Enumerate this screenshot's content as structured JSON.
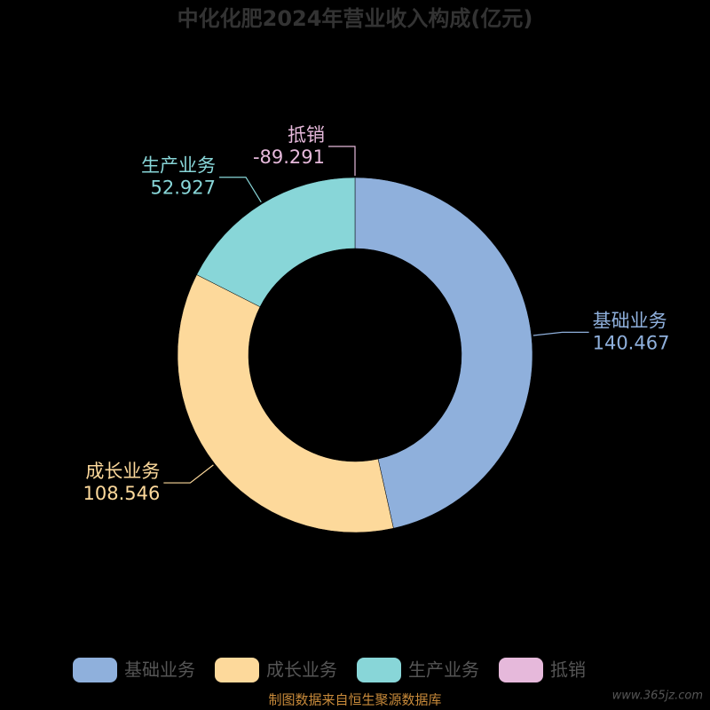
{
  "chart_data": {
    "type": "donut",
    "title": "中化化肥2024年营业收入构成(亿元)",
    "categories": [
      "基础业务",
      "成长业务",
      "生产业务",
      "抵销"
    ],
    "values": [
      140.467,
      108.546,
      52.927,
      -89.291
    ],
    "colors": [
      "#8fb0dc",
      "#fdd99b",
      "#88d6d8",
      "#e6b9db"
    ],
    "legend": "bottom",
    "source": "制图数据来自恒生聚源数据库",
    "watermark": "www.365jz.com"
  }
}
